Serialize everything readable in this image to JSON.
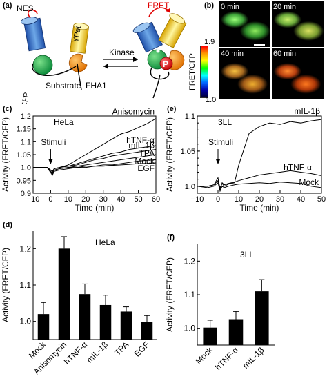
{
  "panels": {
    "a": {
      "label": "(a)",
      "nes": "NES",
      "fret": "FRET",
      "ecfp": "ECFP",
      "ypet": "YPet",
      "substrate": "Substrate",
      "fha1": "FHA1",
      "kinase": "Kinase",
      "p": "P"
    },
    "b": {
      "label": "(b)",
      "times": [
        "0 min",
        "20 min",
        "40 min",
        "60 min"
      ],
      "scale_label": "FRET/CFP",
      "scale_max": "1.9",
      "scale_min": "1.0"
    },
    "c": {
      "label": "(c)",
      "cell_line": "HeLa",
      "stimuli": "Stimuli"
    },
    "d": {
      "label": "(d)",
      "cell_line": "HeLa"
    },
    "e": {
      "label": "(e)",
      "cell_line": "3LL",
      "stimuli": "Stimuli"
    },
    "f": {
      "label": "(f)",
      "cell_line": "3LL"
    }
  },
  "chart_data": [
    {
      "id": "c",
      "type": "line",
      "xlabel": "Time (min)",
      "ylabel": "Activity (FRET/CFP)",
      "xlim": [
        -10,
        60
      ],
      "ylim": [
        0.9,
        1.2
      ],
      "xticks": [
        -10,
        0,
        10,
        20,
        30,
        40,
        50,
        60
      ],
      "yticks": [
        0.9,
        0.95,
        1.0,
        1.05,
        1.1,
        1.15,
        1.2
      ],
      "x": [
        -10,
        -5,
        -2,
        0,
        1,
        2,
        5,
        10,
        15,
        20,
        25,
        30,
        35,
        40,
        45,
        50,
        55,
        60
      ],
      "series": [
        {
          "name": "Anisomycin",
          "values": [
            1.0,
            1.0,
            1.0,
            0.99,
            0.985,
            0.995,
            1.0,
            1.01,
            1.03,
            1.05,
            1.07,
            1.09,
            1.11,
            1.13,
            1.14,
            1.155,
            1.17,
            1.19
          ]
        },
        {
          "name": "hTNF-α",
          "values": [
            1.0,
            1.0,
            1.0,
            0.99,
            0.985,
            0.995,
            1.0,
            1.005,
            1.015,
            1.025,
            1.035,
            1.045,
            1.055,
            1.06,
            1.07,
            1.075,
            1.08,
            1.085
          ]
        },
        {
          "name": "mIL-1β",
          "values": [
            1.0,
            1.0,
            1.0,
            0.99,
            0.985,
            0.995,
            1.0,
            1.005,
            1.01,
            1.02,
            1.03,
            1.035,
            1.045,
            1.05,
            1.055,
            1.06,
            1.065,
            1.07
          ]
        },
        {
          "name": "TPA",
          "values": [
            1.0,
            1.0,
            1.0,
            0.985,
            0.98,
            0.99,
            0.995,
            1.0,
            1.005,
            1.01,
            1.015,
            1.02,
            1.025,
            1.03,
            1.035,
            1.04,
            1.045,
            1.05
          ]
        },
        {
          "name": "Mock",
          "values": [
            1.0,
            1.0,
            1.0,
            0.985,
            0.975,
            0.99,
            0.995,
            1.0,
            1.0,
            1.005,
            1.005,
            1.01,
            1.01,
            1.015,
            1.02,
            1.025,
            1.028,
            1.03
          ]
        },
        {
          "name": "EGF",
          "values": [
            1.0,
            1.0,
            1.0,
            0.98,
            0.97,
            0.985,
            0.99,
            0.995,
            1.0,
            1.0,
            1.005,
            1.005,
            1.008,
            1.01,
            1.012,
            1.015,
            1.016,
            1.018
          ]
        }
      ],
      "annotation": "Stimuli"
    },
    {
      "id": "d",
      "type": "bar",
      "categories": [
        "Mock",
        "Anisomycin",
        "hTNF-α",
        "mIL-1β",
        "TPA",
        "EGF"
      ],
      "values": [
        1.02,
        1.2,
        1.075,
        1.045,
        1.027,
        0.998
      ],
      "errors": [
        0.032,
        0.033,
        0.028,
        0.027,
        0.013,
        0.018
      ],
      "ylabel": "Activity (FRET/CFP)",
      "ylim": [
        0.95,
        1.25
      ],
      "yticks": [
        1.0,
        1.1,
        1.2
      ]
    },
    {
      "id": "e",
      "type": "line",
      "xlabel": "Time (min)",
      "ylabel": "Activity (FRET/CFP)",
      "xlim": [
        -10,
        50
      ],
      "ylim": [
        0.99,
        1.1
      ],
      "xticks": [
        -10,
        0,
        10,
        20,
        30,
        40,
        50
      ],
      "yticks": [
        1.0,
        1.05,
        1.1
      ],
      "yticks_minor": [
        0.99,
        1.0,
        1.01,
        1.02,
        1.03,
        1.04,
        1.05,
        1.06,
        1.07,
        1.08,
        1.09,
        1.1
      ],
      "x": [
        -10,
        -5,
        -2,
        0,
        1,
        2,
        3,
        5,
        8,
        10,
        15,
        20,
        25,
        30,
        35,
        40,
        45,
        50
      ],
      "series": [
        {
          "name": "mIL-1β",
          "values": [
            1.0,
            1.0,
            1.002,
            1.008,
            0.998,
            1.004,
            1.0,
            1.003,
            1.005,
            1.03,
            1.075,
            1.085,
            1.09,
            1.088,
            1.092,
            1.09,
            1.093,
            1.095
          ]
        },
        {
          "name": "hTNF-α",
          "values": [
            1.0,
            1.0,
            1.002,
            1.012,
            0.995,
            1.005,
            1.002,
            1.004,
            1.006,
            1.008,
            1.012,
            1.016,
            1.018,
            1.02,
            1.022,
            1.02,
            1.018,
            1.015
          ]
        },
        {
          "name": "Mock",
          "values": [
            1.0,
            0.998,
            1.0,
            1.005,
            0.993,
            1.0,
            0.998,
            1.0,
            1.002,
            1.003,
            1.004,
            1.005,
            1.004,
            1.006,
            1.005,
            1.004,
            1.0,
            0.998
          ]
        }
      ],
      "annotation": "Stimuli"
    },
    {
      "id": "f",
      "type": "bar",
      "categories": [
        "Mock",
        "hTNF-α",
        "mIL-1β"
      ],
      "values": [
        1.002,
        1.027,
        1.11
      ],
      "errors": [
        0.022,
        0.023,
        0.035
      ],
      "ylabel": "Activity (FRET/CFP)",
      "ylim": [
        0.95,
        1.25
      ],
      "yticks": [
        1.0,
        1.1,
        1.2
      ]
    }
  ]
}
